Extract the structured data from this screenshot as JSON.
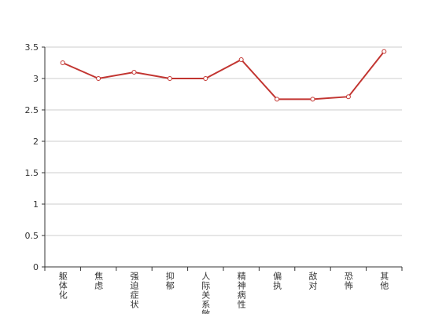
{
  "chart_data": {
    "type": "line",
    "categories": [
      "躯体化",
      "焦虑",
      "强迫症状",
      "抑郁",
      "人际关系敏感",
      "精神病性",
      "偏执",
      "敌对",
      "恐怖",
      "其他"
    ],
    "series": [
      {
        "color": "#c23531",
        "values": [
          3.25,
          3.0,
          3.1,
          3.0,
          3.0,
          3.3,
          2.67,
          2.67,
          2.71,
          3.43
        ]
      }
    ],
    "ylim": [
      0,
      3.5
    ],
    "yticks": [
      0,
      0.5,
      1,
      1.5,
      2,
      2.5,
      3,
      3.5
    ],
    "grid": true
  }
}
